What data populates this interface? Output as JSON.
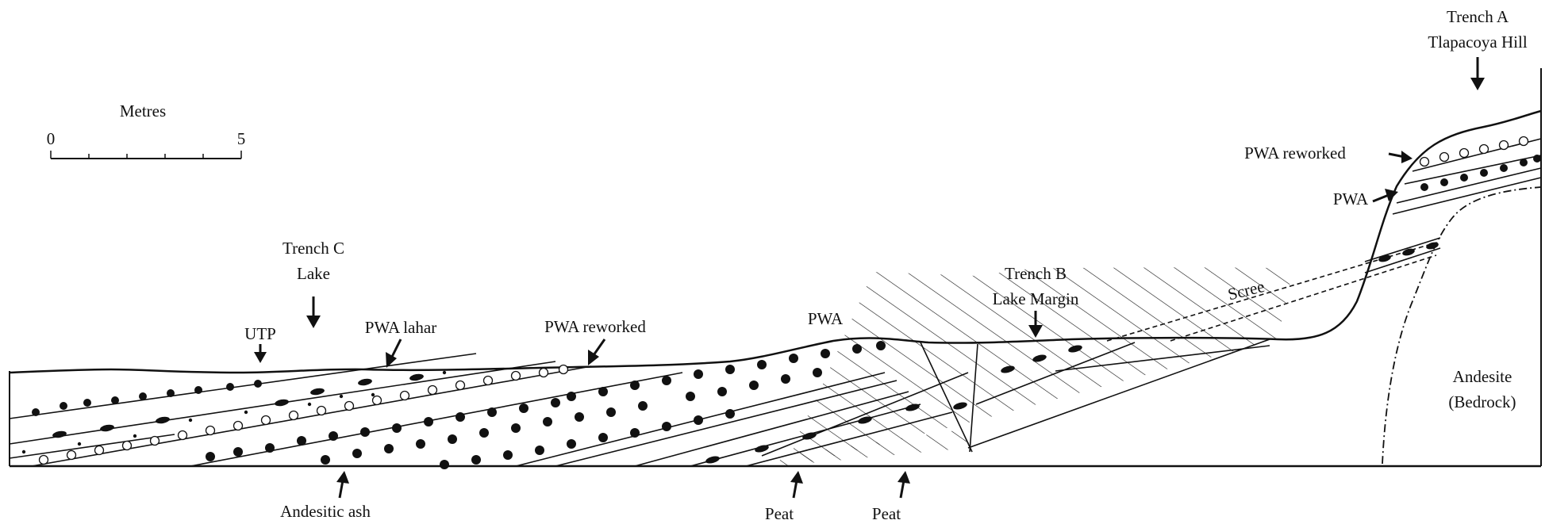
{
  "scale_bar": {
    "title": "Metres",
    "tick_start": "0",
    "tick_end": "5"
  },
  "trenches": {
    "a": {
      "line1": "Trench A",
      "line2": "Tlapacoya Hill"
    },
    "b": {
      "line1": "Trench B",
      "line2": "Lake Margin"
    },
    "c": {
      "line1": "Trench C",
      "line2": "Lake"
    }
  },
  "labels": {
    "utp": "UTP",
    "pwa_lahar": "PWA lahar",
    "pwa_reworked_center": "PWA reworked",
    "pwa_center": "PWA",
    "pwa_reworked_hill": "PWA reworked",
    "pwa_hill": "PWA",
    "scree": "Scree",
    "andesite_line1": "Andesite",
    "andesite_line2": "(Bedrock)",
    "andesitic_ash": "Andesitic ash",
    "peat_left": "Peat",
    "peat_right": "Peat"
  },
  "colors": {
    "ink": "#111111",
    "background": "#ffffff"
  }
}
